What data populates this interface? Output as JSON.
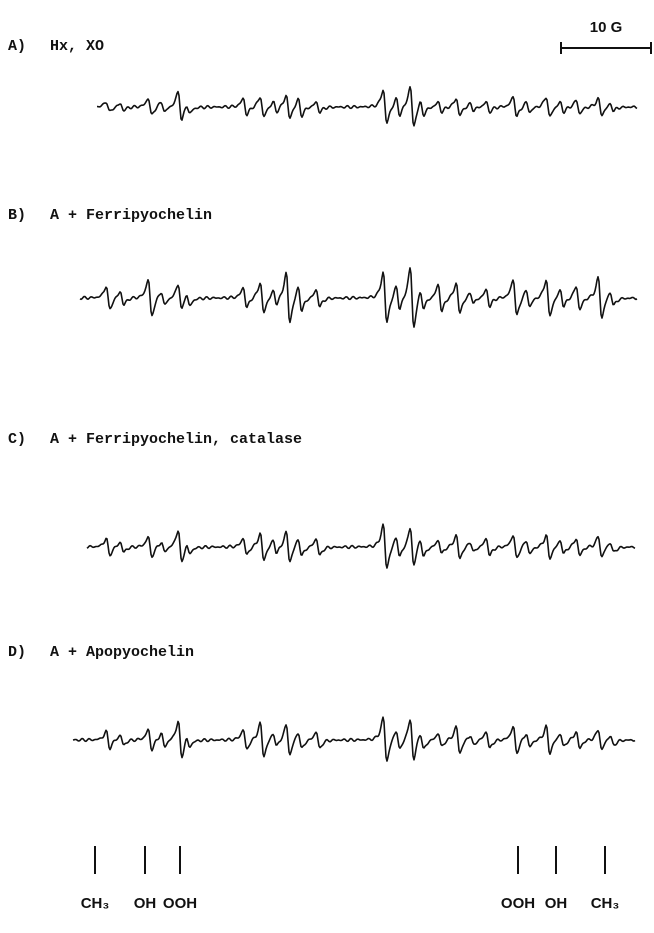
{
  "panels": [
    {
      "letter": "A)",
      "label": "Hx, XO"
    },
    {
      "letter": "B)",
      "label": "A + Ferripyochelin"
    },
    {
      "letter": "C)",
      "label": "A + Ferripyochelin, catalase"
    },
    {
      "letter": "D)",
      "label": "A + Apopyochelin"
    }
  ],
  "scale_bar": "10 G",
  "markers": [
    "CH₃",
    "OH",
    "OOH",
    "OOH",
    "OH",
    "CH₃"
  ]
}
